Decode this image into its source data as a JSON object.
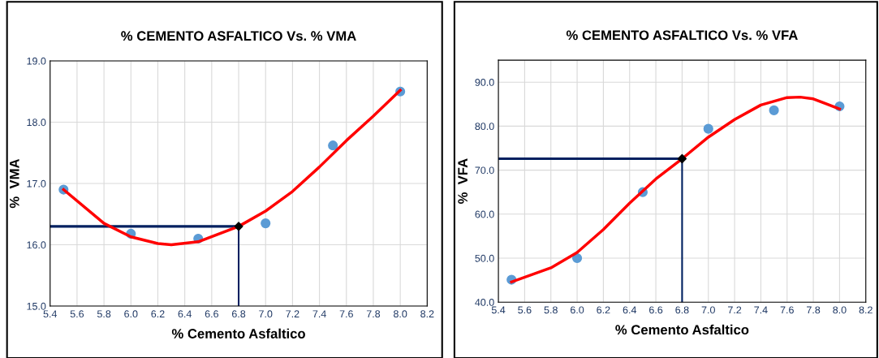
{
  "chart_data": [
    {
      "type": "scatter",
      "title": "% CEMENTO ASFALTICO Vs. % VMA",
      "xlabel": "% Cemento Asfaltico",
      "ylabel": "%  VMA",
      "xlim": [
        5.4,
        8.2
      ],
      "xticks": [
        {
          "value": 5.4,
          "label": "5.4"
        },
        {
          "value": 5.6,
          "label": "5.6"
        },
        {
          "value": 5.8,
          "label": "5.8"
        },
        {
          "value": 6.0,
          "label": "6.0"
        },
        {
          "value": 6.2,
          "label": "6.2"
        },
        {
          "value": 6.4,
          "label": "6.4"
        },
        {
          "value": 6.6,
          "label": "6.6"
        },
        {
          "value": 6.8,
          "label": "6.8"
        },
        {
          "value": 7.0,
          "label": "7.0"
        },
        {
          "value": 7.2,
          "label": "7.2"
        },
        {
          "value": 7.4,
          "label": "7.4"
        },
        {
          "value": 7.6,
          "label": "7.6"
        },
        {
          "value": 7.8,
          "label": "7.8"
        },
        {
          "value": 8.0,
          "label": "8.0"
        },
        {
          "value": 8.2,
          "label": "8.2"
        }
      ],
      "ylim": [
        15,
        19
      ],
      "yticks": [
        {
          "value": 15,
          "label": "15.0"
        },
        {
          "value": 16,
          "label": "16.0"
        },
        {
          "value": 17,
          "label": "17.0"
        },
        {
          "value": 18,
          "label": "18.0"
        },
        {
          "value": 19,
          "label": "19.0"
        }
      ],
      "grid": true,
      "series": [
        {
          "color": "#5b9bd5",
          "marker": "circle",
          "x": [
            5.5,
            6.0,
            6.5,
            7.0,
            7.5,
            8.0
          ],
          "values": [
            16.9,
            16.18,
            16.1,
            16.35,
            17.62,
            18.5
          ]
        },
        {
          "type": "line",
          "color": "#ff0000",
          "marker": "none",
          "x": [
            5.5,
            5.8,
            6.0,
            6.2,
            6.3,
            6.5,
            6.8,
            7.0,
            7.2,
            7.4,
            7.6,
            7.8,
            8.0
          ],
          "values": [
            16.9,
            16.35,
            16.13,
            16.02,
            16.0,
            16.05,
            16.3,
            16.55,
            16.87,
            17.27,
            17.7,
            18.1,
            18.52
          ]
        },
        {
          "type": "scatter",
          "color": "#000000",
          "marker": "diamond",
          "x": [
            6.8
          ],
          "values": [
            16.3
          ]
        }
      ],
      "ref_lines": [
        {
          "axis": "y",
          "value": 16.3,
          "color": "#002060"
        },
        {
          "axis": "x",
          "value": 6.8,
          "color": "#002060"
        }
      ]
    },
    {
      "type": "scatter",
      "title": "% CEMENTO ASFALTICO Vs. % VFA",
      "xlabel": "% Cemento Asfaltico",
      "ylabel": "%  VFA",
      "xlim": [
        5.4,
        8.2
      ],
      "xticks": [
        {
          "value": 5.4,
          "label": "5.4"
        },
        {
          "value": 5.6,
          "label": "5.6"
        },
        {
          "value": 5.8,
          "label": "5.8"
        },
        {
          "value": 6.0,
          "label": "6.0"
        },
        {
          "value": 6.2,
          "label": "6.2"
        },
        {
          "value": 6.4,
          "label": "6.4"
        },
        {
          "value": 6.6,
          "label": "6.6"
        },
        {
          "value": 6.8,
          "label": "6.8"
        },
        {
          "value": 7.0,
          "label": "7.0"
        },
        {
          "value": 7.2,
          "label": "7.2"
        },
        {
          "value": 7.4,
          "label": "7.4"
        },
        {
          "value": 7.6,
          "label": "7.6"
        },
        {
          "value": 7.8,
          "label": "7.8"
        },
        {
          "value": 8.0,
          "label": "8.0"
        },
        {
          "value": 8.2,
          "label": "8.2"
        }
      ],
      "ylim": [
        40,
        95
      ],
      "yticks": [
        {
          "value": 40,
          "label": "40.0"
        },
        {
          "value": 50,
          "label": "50.0"
        },
        {
          "value": 60,
          "label": "60.0"
        },
        {
          "value": 70,
          "label": "70.0"
        },
        {
          "value": 80,
          "label": "80.0"
        },
        {
          "value": 90,
          "label": "90.0"
        }
      ],
      "grid": true,
      "series": [
        {
          "color": "#5b9bd5",
          "marker": "circle",
          "x": [
            5.5,
            6.0,
            6.5,
            7.0,
            7.5,
            8.0
          ],
          "values": [
            45.1,
            50.0,
            65.0,
            79.4,
            83.6,
            84.5
          ]
        },
        {
          "type": "line",
          "color": "#ff0000",
          "marker": "none",
          "x": [
            5.5,
            5.8,
            6.0,
            6.2,
            6.4,
            6.6,
            6.8,
            7.0,
            7.2,
            7.4,
            7.6,
            7.7,
            7.8,
            8.0
          ],
          "values": [
            44.6,
            47.8,
            51.3,
            56.5,
            62.5,
            68.0,
            72.6,
            77.5,
            81.5,
            84.8,
            86.5,
            86.6,
            86.2,
            83.9
          ]
        },
        {
          "type": "scatter",
          "color": "#000000",
          "marker": "diamond",
          "x": [
            6.8
          ],
          "values": [
            72.6
          ]
        }
      ],
      "ref_lines": [
        {
          "axis": "y",
          "value": 72.6,
          "color": "#002060"
        },
        {
          "axis": "x",
          "value": 6.8,
          "color": "#002060"
        }
      ]
    }
  ]
}
